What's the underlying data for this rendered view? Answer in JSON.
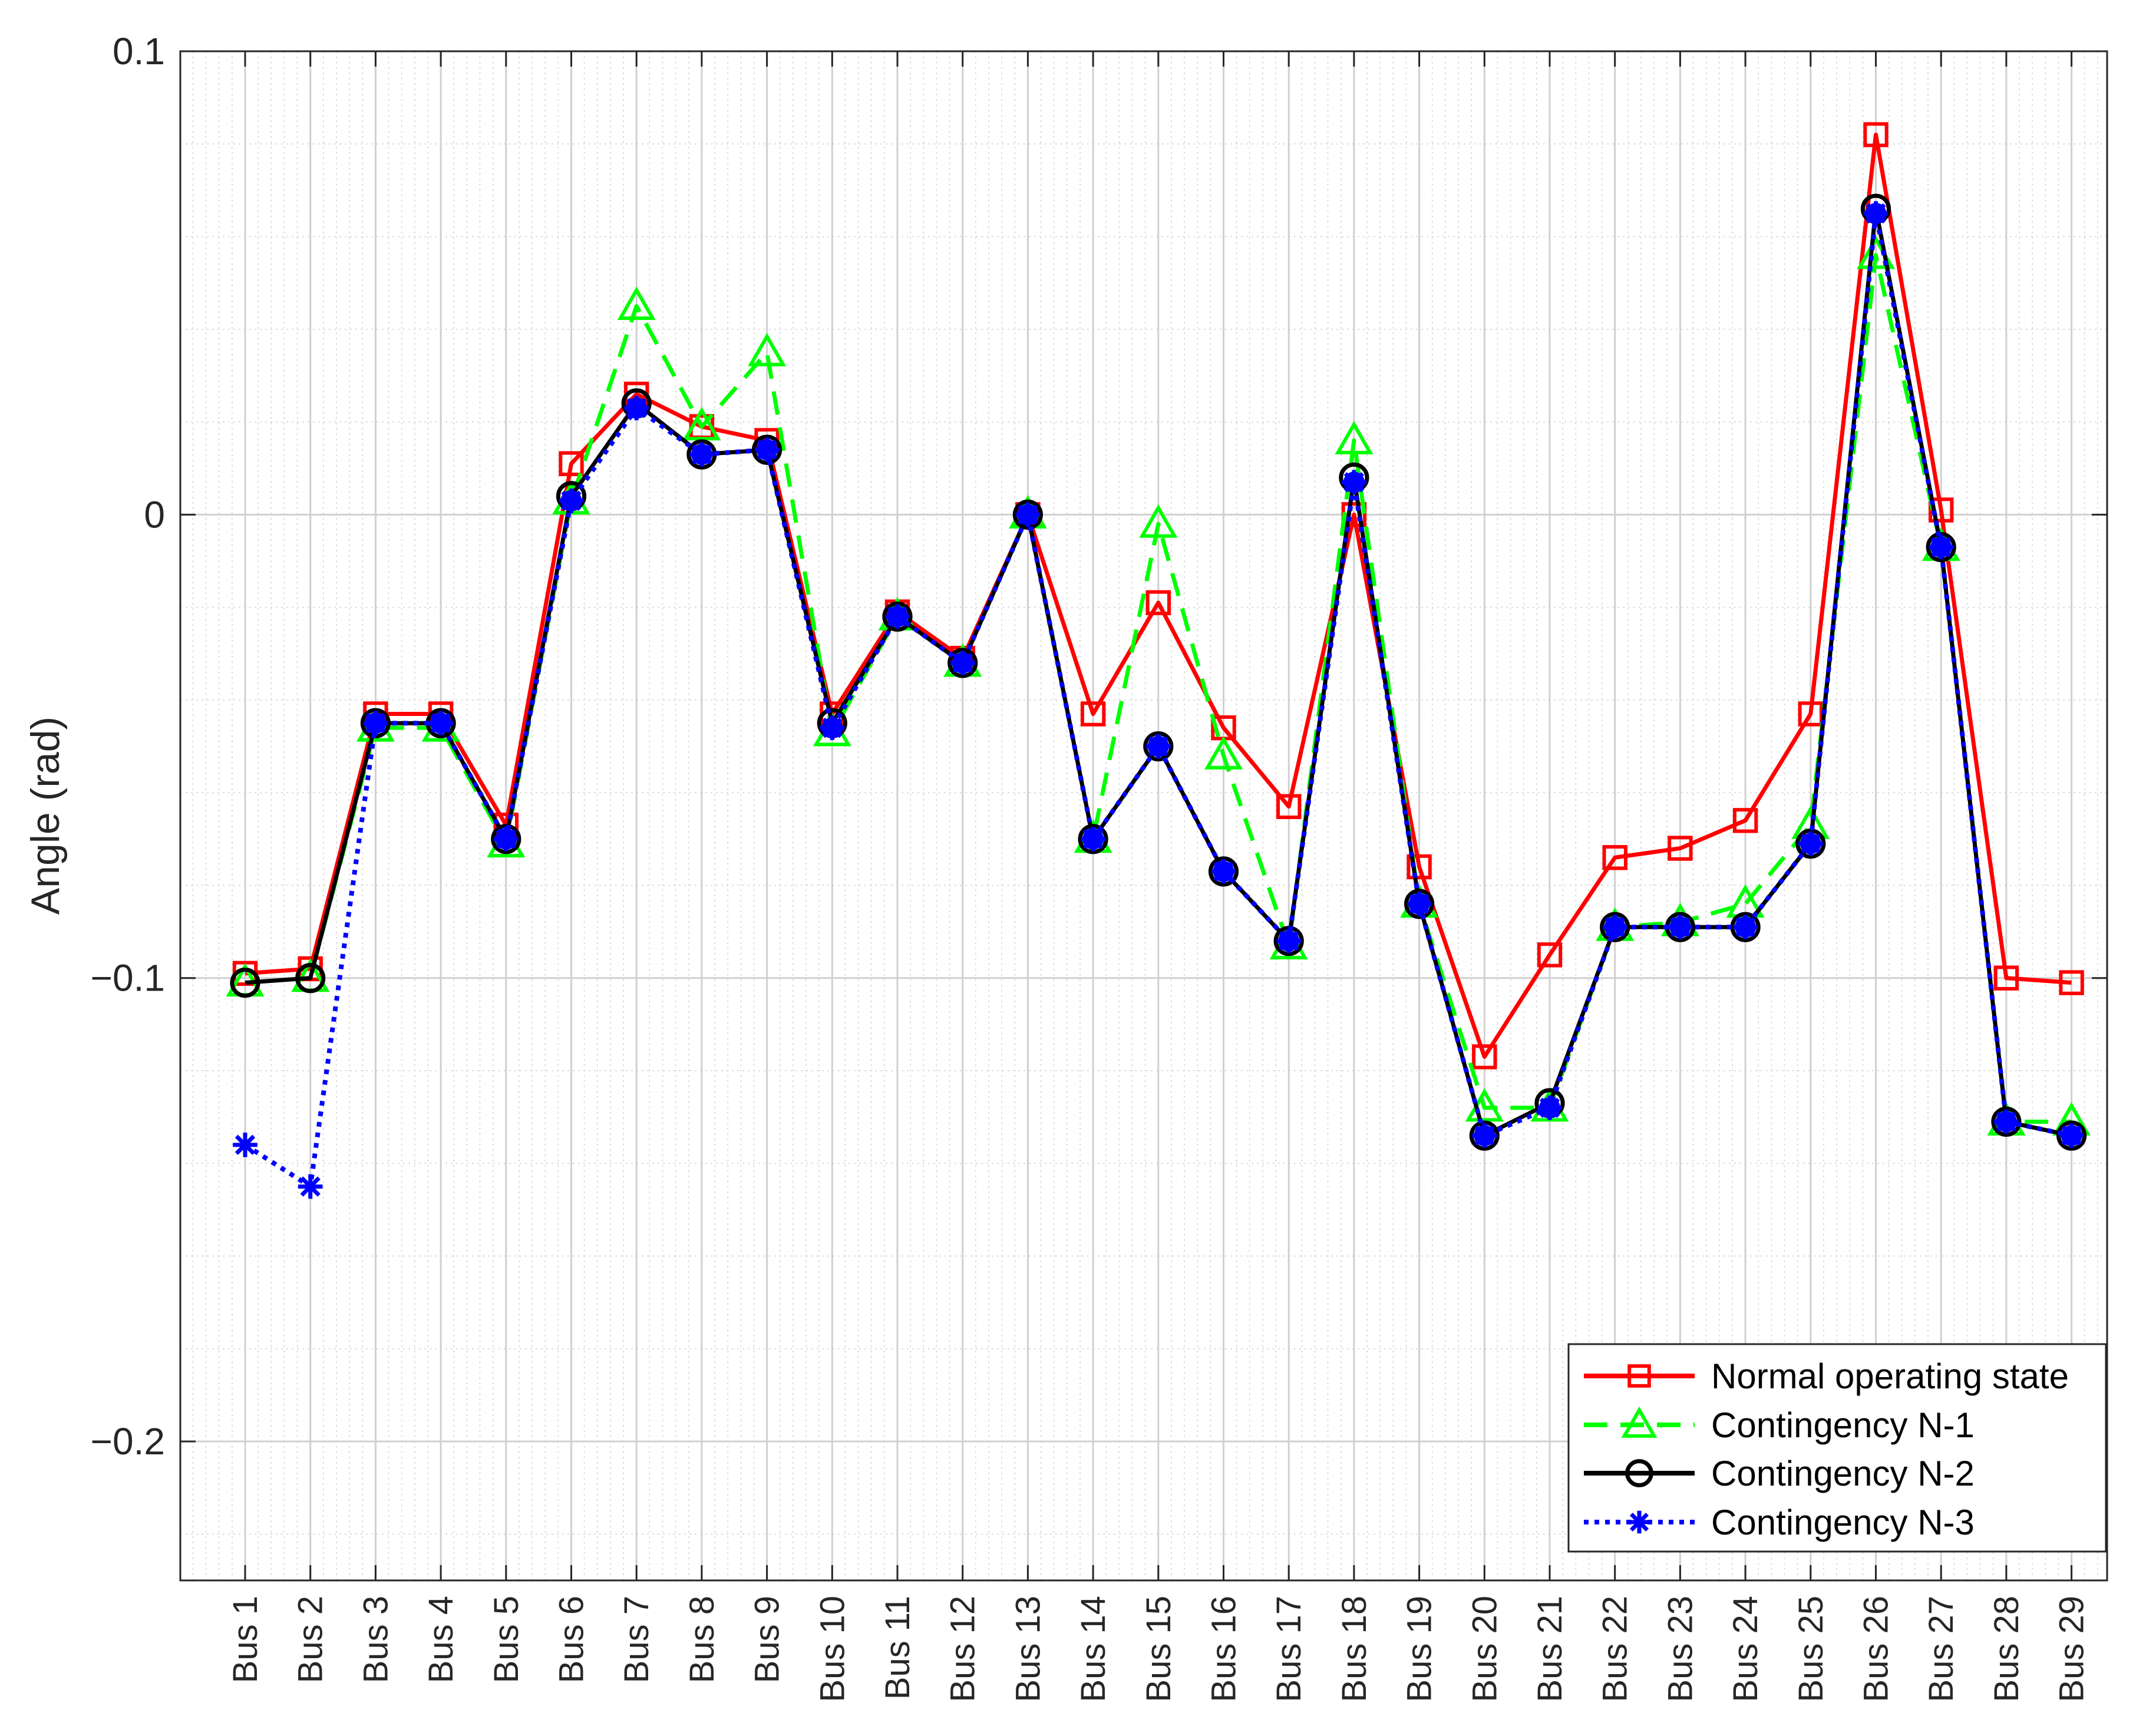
{
  "chart_data": {
    "type": "line",
    "title": "",
    "xlabel": "",
    "ylabel": "Angle (rad)",
    "ylim": [
      -0.23,
      0.1
    ],
    "yticks": [
      0.1,
      0,
      -0.1,
      -0.2
    ],
    "ytick_labels": [
      "0.1",
      "0",
      "−0.1",
      "−0.2"
    ],
    "grid": true,
    "minor_grid": true,
    "legend_position": "bottom-right",
    "categories": [
      "Bus 1",
      "Bus 2",
      "Bus 3",
      "Bus 4",
      "Bus 5",
      "Bus 6",
      "Bus 7",
      "Bus 8",
      "Bus 9",
      "Bus 10",
      "Bus 11",
      "Bus 12",
      "Bus 13",
      "Bus 14",
      "Bus 15",
      "Bus 16",
      "Bus 17",
      "Bus 18",
      "Bus 19",
      "Bus 20",
      "Bus 21",
      "Bus 22",
      "Bus 23",
      "Bus 24",
      "Bus 25",
      "Bus 26",
      "Bus 27",
      "Bus 28",
      "Bus 29"
    ],
    "series": [
      {
        "name": "Normal operating state",
        "color": "#ff0000",
        "line_style": "solid",
        "marker": "square",
        "values": [
          -0.099,
          -0.098,
          -0.043,
          -0.043,
          -0.067,
          0.011,
          0.026,
          0.019,
          0.016,
          -0.043,
          -0.021,
          -0.031,
          0.0,
          -0.043,
          -0.019,
          -0.046,
          -0.063,
          0.0,
          -0.076,
          -0.117,
          -0.095,
          -0.074,
          -0.072,
          -0.066,
          -0.043,
          0.082,
          0.001,
          -0.1,
          -0.101
        ]
      },
      {
        "name": "Contingency N-1",
        "color": "#00ff00",
        "line_style": "dashed",
        "marker": "triangle",
        "values": [
          -0.101,
          -0.1,
          -0.046,
          -0.046,
          -0.071,
          0.003,
          0.045,
          0.019,
          0.035,
          -0.047,
          -0.022,
          -0.032,
          0.0,
          -0.07,
          -0.002,
          -0.052,
          -0.093,
          0.016,
          -0.084,
          -0.128,
          -0.128,
          -0.089,
          -0.088,
          -0.084,
          -0.067,
          0.056,
          -0.007,
          -0.131,
          -0.131
        ]
      },
      {
        "name": "Contingency N-2",
        "color": "#000000",
        "line_style": "solid",
        "marker": "circle",
        "values": [
          -0.101,
          -0.1,
          -0.045,
          -0.045,
          -0.07,
          0.004,
          0.024,
          0.013,
          0.014,
          -0.045,
          -0.022,
          -0.032,
          0.0,
          -0.07,
          -0.05,
          -0.077,
          -0.092,
          0.008,
          -0.084,
          -0.134,
          -0.127,
          -0.089,
          -0.089,
          -0.089,
          -0.071,
          0.066,
          -0.007,
          -0.131,
          -0.134
        ]
      },
      {
        "name": "Contingency N-3",
        "color": "#0000ff",
        "line_style": "dotted",
        "marker": "asterisk",
        "values": [
          -0.136,
          -0.145,
          -0.045,
          -0.045,
          -0.07,
          0.003,
          0.023,
          0.013,
          0.014,
          -0.046,
          -0.022,
          -0.032,
          0.0,
          -0.07,
          -0.05,
          -0.077,
          -0.092,
          0.007,
          -0.084,
          -0.134,
          -0.128,
          -0.089,
          -0.089,
          -0.089,
          -0.071,
          0.065,
          -0.007,
          -0.131,
          -0.134
        ]
      }
    ]
  }
}
